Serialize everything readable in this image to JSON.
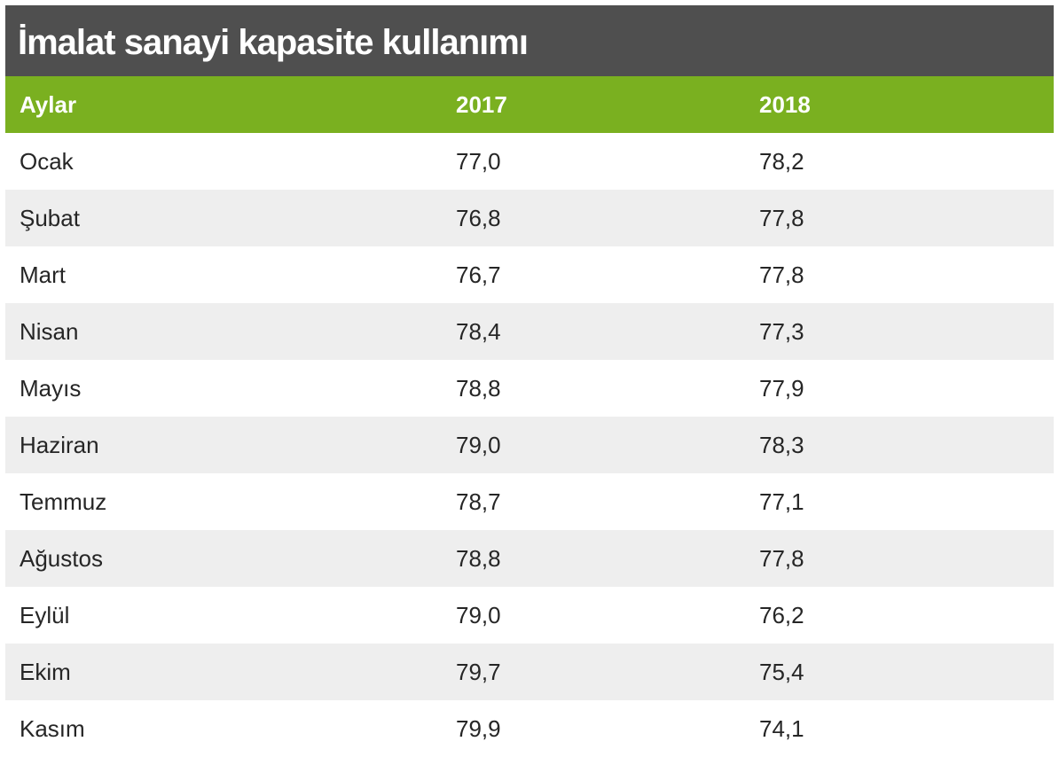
{
  "title": "İmalat sanayi kapasite kullanımı",
  "colors": {
    "title_bg": "#4f4f4f",
    "header_bg": "#7ab020",
    "stripe_bg": "#eeeeee"
  },
  "chart_data": {
    "type": "table",
    "title": "İmalat sanayi kapasite kullanımı",
    "columns": [
      "Aylar",
      "2017",
      "2018"
    ],
    "rows": [
      [
        "Ocak",
        "77,0",
        "78,2"
      ],
      [
        "Şubat",
        "76,8",
        "77,8"
      ],
      [
        "Mart",
        "76,7",
        "77,8"
      ],
      [
        "Nisan",
        "78,4",
        "77,3"
      ],
      [
        "Mayıs",
        "78,8",
        "77,9"
      ],
      [
        "Haziran",
        "79,0",
        "78,3"
      ],
      [
        "Temmuz",
        "78,7",
        "77,1"
      ],
      [
        "Ağustos",
        "78,8",
        "77,8"
      ],
      [
        "Eylül",
        "79,0",
        "76,2"
      ],
      [
        "Ekim",
        "79,7",
        "75,4"
      ],
      [
        "Kasım",
        "79,9",
        "74,1"
      ]
    ]
  }
}
